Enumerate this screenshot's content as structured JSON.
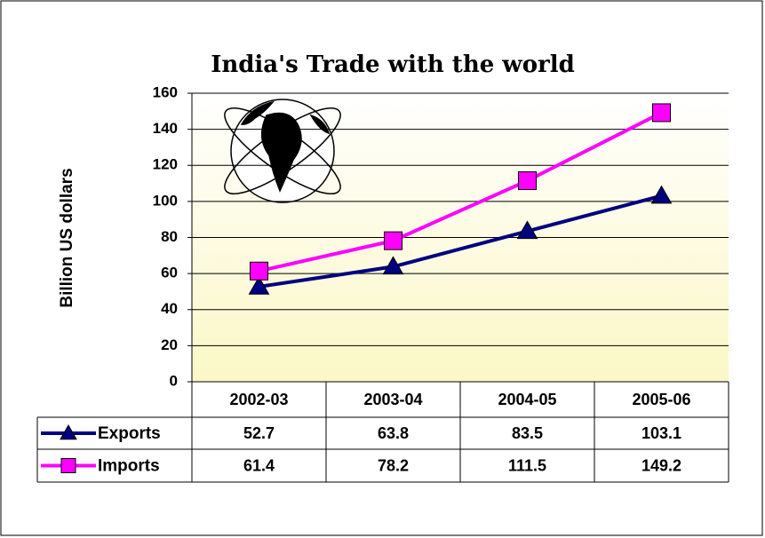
{
  "chart_data": {
    "type": "line",
    "title": "India's Trade with the world",
    "y_label": "Billion US dollars",
    "categories": [
      "2002-03",
      "2003-04",
      "2004-05",
      "2005-06"
    ],
    "series": [
      {
        "name": "Exports",
        "color": "#000080",
        "marker": "triangle",
        "values": [
          52.7,
          63.8,
          83.5,
          103.1
        ]
      },
      {
        "name": "Imports",
        "color": "#ff00ff",
        "marker": "square",
        "values": [
          61.4,
          78.2,
          111.5,
          149.2
        ]
      }
    ],
    "ylim": [
      0,
      160
    ],
    "yticks": [
      0,
      20,
      40,
      60,
      80,
      100,
      120,
      140,
      160
    ],
    "grid": true
  }
}
